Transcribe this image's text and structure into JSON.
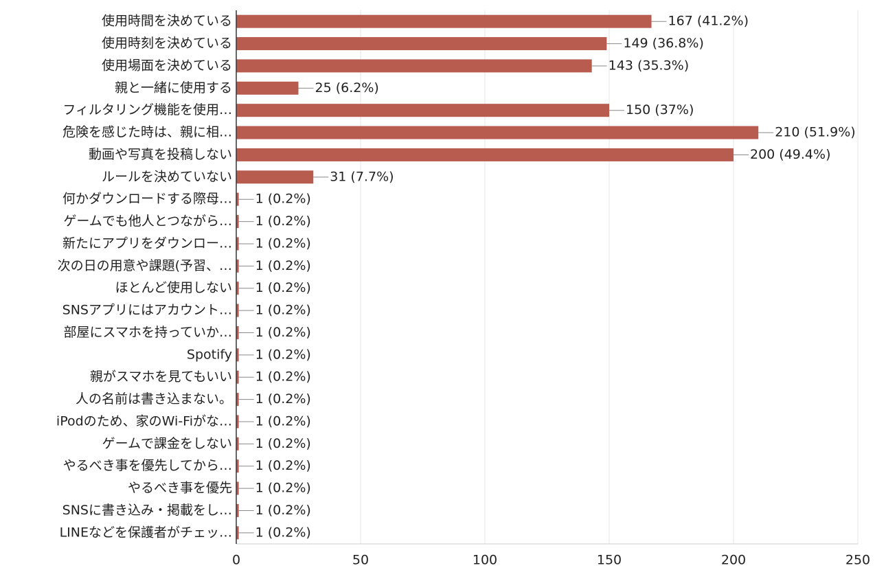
{
  "chart_data": {
    "type": "bar",
    "orientation": "horizontal",
    "categories": [
      "使用時間を決めている",
      "使用時刻を決めている",
      "使用場面を決めている",
      "親と一緒に使用する",
      "フィルタリング機能を使用…",
      "危険を感じた時は、親に相…",
      "動画や写真を投稿しない",
      "ルールを決めていない",
      "何かダウンロードする際母…",
      "ゲームでも他人とつながら…",
      "新たにアプリをダウンロー…",
      "次の日の用意や課題(予習、…",
      "ほとんど使用しない",
      "SNSアプリにはアカウント…",
      "部屋にスマホを持っていか…",
      "Spotify",
      "親がスマホを見てもいい",
      "人の名前は書き込まない。",
      "iPodのため、家のWi-Fiがな…",
      "ゲームで課金をしない",
      "やるべき事を優先してから…",
      "やるべき事を優先",
      "SNSに書き込み・掲載をし…",
      "LINEなどを保護者がチェッ…"
    ],
    "values": [
      167,
      149,
      143,
      25,
      150,
      210,
      200,
      31,
      1,
      1,
      1,
      1,
      1,
      1,
      1,
      1,
      1,
      1,
      1,
      1,
      1,
      1,
      1,
      1
    ],
    "value_labels": [
      "167 (41.2%)",
      "149 (36.8%)",
      "143 (35.3%)",
      "25 (6.2%)",
      "150 (37%)",
      "210 (51.9%)",
      "200 (49.4%)",
      "31 (7.7%)",
      "1 (0.2%)",
      "1 (0.2%)",
      "1 (0.2%)",
      "1 (0.2%)",
      "1 (0.2%)",
      "1 (0.2%)",
      "1 (0.2%)",
      "1 (0.2%)",
      "1 (0.2%)",
      "1 (0.2%)",
      "1 (0.2%)",
      "1 (0.2%)",
      "1 (0.2%)",
      "1 (0.2%)",
      "1 (0.2%)",
      "1 (0.2%)"
    ],
    "color": "#b85c50",
    "xlim": [
      0,
      250
    ],
    "xticks": [
      0,
      50,
      100,
      150,
      200,
      250
    ],
    "grid": true
  }
}
